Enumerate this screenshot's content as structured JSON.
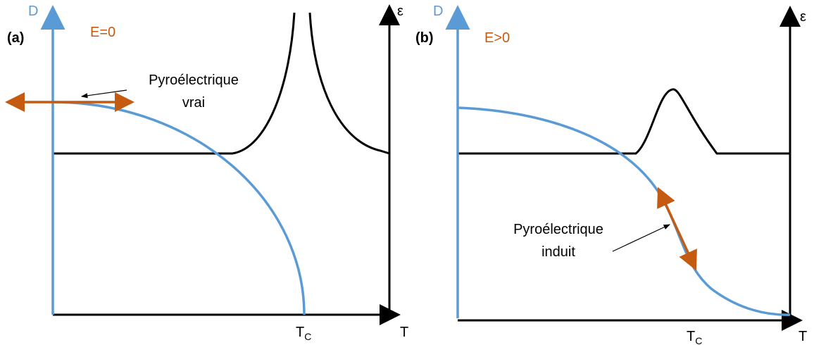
{
  "panels": [
    {
      "label": "(a)",
      "condition": "E=0",
      "y_left": "D",
      "y_right": "ε",
      "x_axis": "T",
      "tc": {
        "main": "T",
        "sub": "C"
      },
      "annotation": [
        "Pyroélectrique",
        "vrai"
      ]
    },
    {
      "label": "(b)",
      "condition": "E>0",
      "y_left": "D",
      "y_right": "ε",
      "x_axis": "T",
      "tc": {
        "main": "T",
        "sub": "C"
      },
      "annotation": [
        "Pyroélectrique",
        "induit"
      ]
    }
  ]
}
